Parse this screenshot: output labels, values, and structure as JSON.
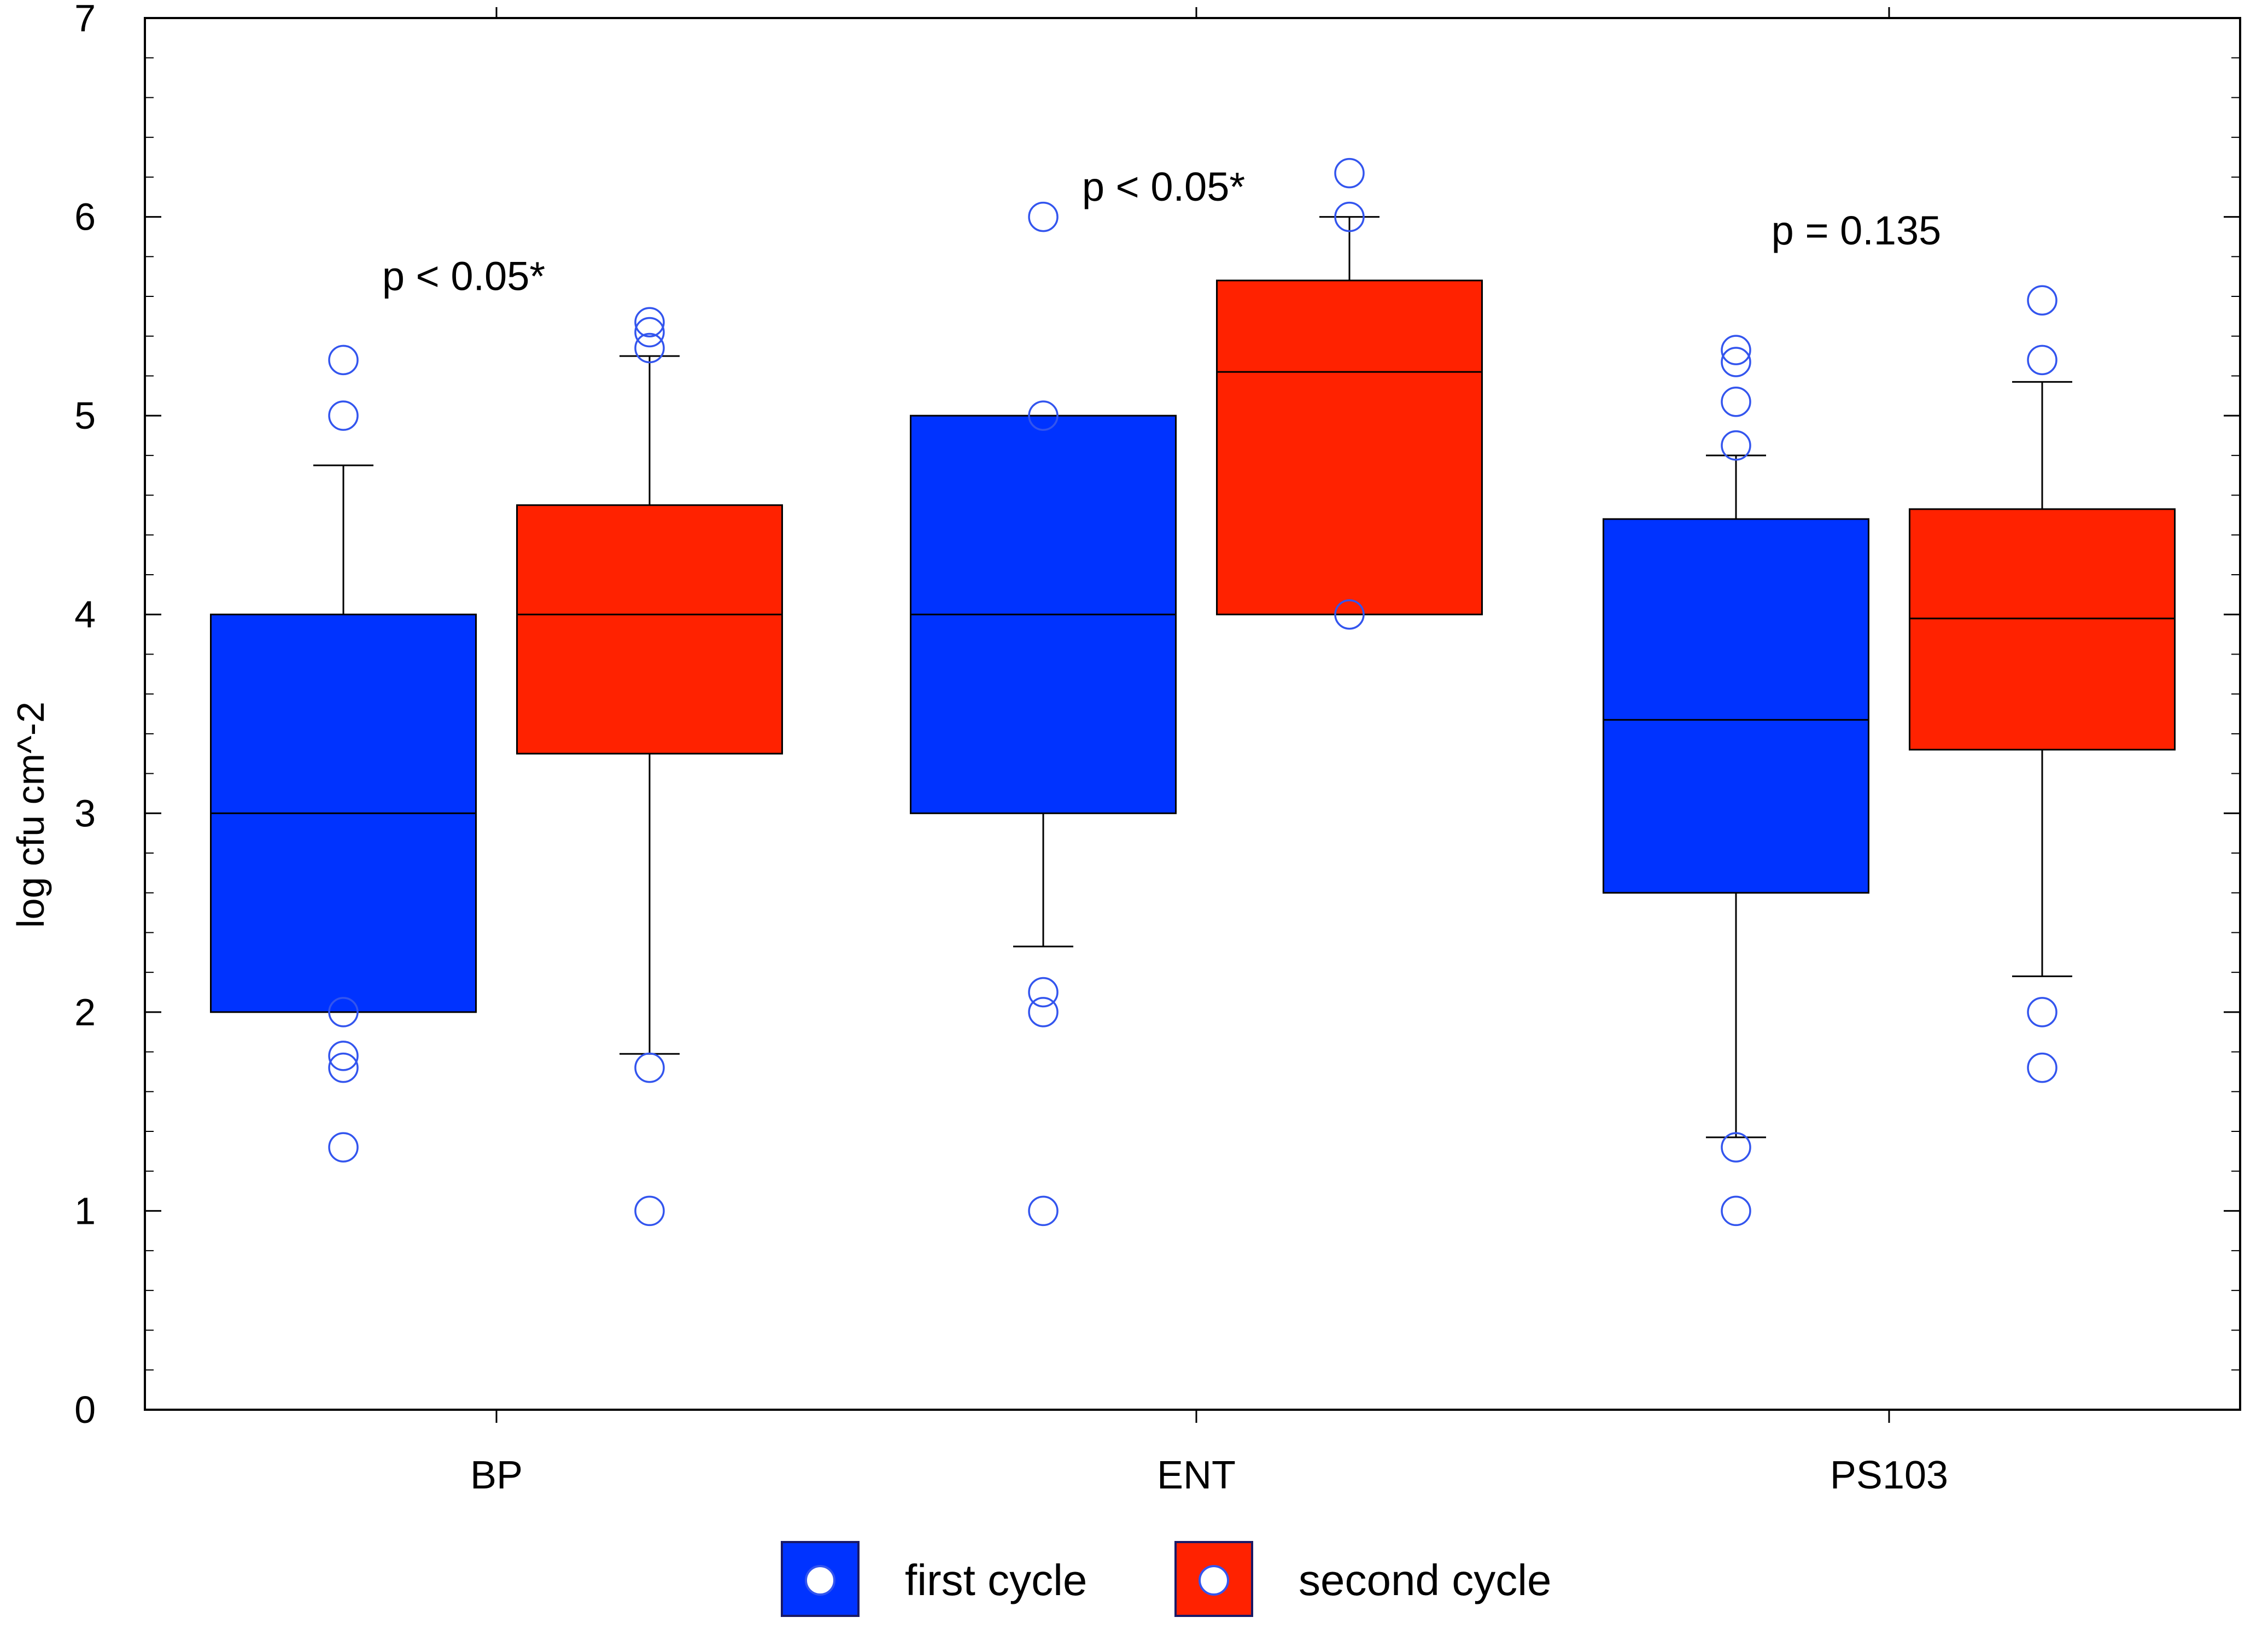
{
  "chart_data": {
    "type": "box",
    "title": "",
    "xlabel": "",
    "ylabel": "log cfu cm^-2",
    "ylim": [
      0,
      7
    ],
    "yticks": [
      0,
      1,
      2,
      3,
      4,
      5,
      6,
      7
    ],
    "categories": [
      "BP",
      "ENT",
      "PS103"
    ],
    "series": [
      {
        "name": "first cycle",
        "color": "#0033ff",
        "boxes": [
          {
            "category": "BP",
            "whisker_low": null,
            "q1": 2.0,
            "median": 3.0,
            "q3": 4.0,
            "whisker_high": 4.75,
            "outliers": [
              5.28,
              5.0,
              2.0,
              1.78,
              1.72,
              1.32
            ]
          },
          {
            "category": "ENT",
            "whisker_low": 2.33,
            "q1": 3.0,
            "median": 4.0,
            "q3": 5.0,
            "whisker_high": null,
            "outliers": [
              6.0,
              5.0,
              2.1,
              2.0,
              1.0
            ]
          },
          {
            "category": "PS103",
            "whisker_low": 1.37,
            "q1": 2.6,
            "median": 3.47,
            "q3": 4.48,
            "whisker_high": 4.8,
            "outliers": [
              5.33,
              5.27,
              5.07,
              4.85,
              1.32,
              1.0
            ]
          }
        ]
      },
      {
        "name": "second cycle",
        "color": "#ff2200",
        "boxes": [
          {
            "category": "BP",
            "whisker_low": 1.79,
            "q1": 3.3,
            "median": 4.0,
            "q3": 4.55,
            "whisker_high": 5.3,
            "outliers": [
              5.47,
              5.42,
              5.34,
              1.72,
              1.0
            ]
          },
          {
            "category": "ENT",
            "whisker_low": null,
            "q1": 4.0,
            "median": 5.22,
            "q3": 5.68,
            "whisker_high": 6.0,
            "outliers": [
              6.22,
              6.0,
              4.0
            ]
          },
          {
            "category": "PS103",
            "whisker_low": 2.18,
            "q1": 3.32,
            "median": 3.98,
            "q3": 4.53,
            "whisker_high": 5.17,
            "outliers": [
              5.58,
              5.28,
              2.0,
              1.72
            ]
          }
        ]
      }
    ],
    "annotations": [
      {
        "category": "BP",
        "text": "p < 0.05*",
        "y": 5.7
      },
      {
        "category": "ENT",
        "text": "p < 0.05*",
        "y": 6.15
      },
      {
        "category": "PS103",
        "text": "p = 0.135",
        "y": 5.93
      }
    ],
    "outlier_color": "#3355ee",
    "legend": {
      "position": "bottom",
      "items": [
        {
          "label": "first cycle",
          "color": "#0033ff"
        },
        {
          "label": "second cycle",
          "color": "#ff2200"
        }
      ]
    }
  }
}
